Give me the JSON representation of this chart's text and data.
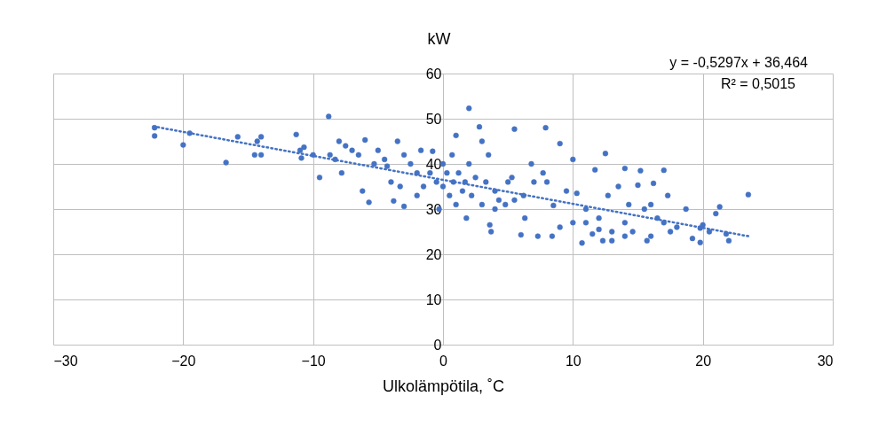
{
  "chart_data": {
    "type": "scatter",
    "xlabel": "Ulkolämpötila, ˚C",
    "ylabel": "kW",
    "xlim": [
      -30,
      30
    ],
    "xticks": [
      -30,
      -20,
      -10,
      0,
      10,
      20,
      30
    ],
    "ylim": [
      0,
      60
    ],
    "yticks": [
      0,
      10,
      20,
      30,
      40,
      50,
      60
    ],
    "grid": true,
    "marker": "circle",
    "annotations": [
      "y = -0,5297x + 36,464",
      "R² = 0,5015"
    ],
    "series": [
      {
        "color": "#4472c4",
        "x": [
          -22.2,
          -22.2,
          -20,
          -19.5,
          -16.7,
          -15.8,
          -14.5,
          -14.3,
          -14,
          -14,
          -11.3,
          -11,
          -10.9,
          -10.7,
          -10,
          -9.5,
          -8.8,
          -8.7,
          -8.3,
          -8,
          -7.8,
          -7.5,
          -7,
          -6.5,
          -6.2,
          -6,
          -5.7,
          -5.3,
          -5,
          -4.5,
          -4.3,
          -4,
          -3.8,
          -3.5,
          -3.3,
          -3,
          -3,
          -2.5,
          -2,
          -2,
          -1.7,
          -1.5,
          -1,
          -0.8,
          -0.5,
          -0.3,
          0,
          0,
          0.3,
          0.5,
          0.7,
          0.8,
          1,
          1,
          1.2,
          1.5,
          1.7,
          1.8,
          2,
          2,
          2.2,
          2.5,
          2.8,
          3,
          3,
          3.3,
          3.5,
          3.6,
          3.7,
          4,
          4,
          4.3,
          4.8,
          5,
          5.3,
          5.5,
          5.5,
          6,
          6.2,
          6.3,
          6.8,
          7,
          7.3,
          7.7,
          7.9,
          8,
          8.4,
          8.5,
          9,
          9,
          9.5,
          10,
          10,
          10.3,
          10.7,
          11,
          11.5,
          11.7,
          12,
          12.3,
          12.5,
          12.7,
          13,
          13.5,
          14,
          14,
          14.3,
          14.6,
          15,
          15.2,
          15.5,
          15.7,
          16,
          16.2,
          16.5,
          17,
          17.3,
          17.5,
          18.7,
          19.2,
          19.8,
          19.8,
          20,
          21,
          21.3,
          21.8,
          22,
          23.5,
          18,
          12,
          13,
          11,
          14,
          16,
          17,
          20.5
        ],
        "values": [
          48,
          46.2,
          44.2,
          46.8,
          40.3,
          46,
          42,
          45,
          42,
          46,
          46.5,
          43,
          41.3,
          43.7,
          42,
          37,
          50.5,
          42,
          41,
          45,
          38,
          44,
          43,
          42,
          34,
          45.3,
          31.5,
          40,
          43,
          41,
          39.5,
          36,
          31.8,
          45,
          35,
          42,
          30.6,
          40,
          38,
          33,
          43,
          35,
          38,
          42.8,
          36,
          30,
          40,
          35,
          38,
          33,
          42,
          36,
          46.3,
          31,
          38,
          34,
          36,
          28,
          52.3,
          40,
          33,
          37,
          48.2,
          45,
          31,
          36,
          42,
          26.5,
          25,
          34,
          30,
          32,
          31,
          36,
          37,
          47.7,
          32,
          24.3,
          33,
          28,
          40,
          36,
          24,
          38,
          48,
          36,
          24,
          30.8,
          44.5,
          26,
          34,
          41,
          27,
          33.5,
          22.5,
          27,
          24.5,
          38.7,
          28,
          23,
          42.3,
          33,
          25,
          35,
          39,
          24,
          31,
          25,
          35.3,
          38.5,
          30,
          23,
          31,
          35.7,
          28,
          38.6,
          33,
          25,
          30,
          23.5,
          22.6,
          25.8,
          26.5,
          29,
          30.5,
          24.5,
          23,
          33.2,
          26,
          25.5,
          23,
          30,
          27,
          24,
          27,
          25
        ]
      },
      {
        "color": "#4472c4",
        "type": "line",
        "line_style": "dotted",
        "marker": "none",
        "x": [
          -22.3,
          23.5
        ],
        "values": [
          48.3,
          24.0
        ]
      }
    ]
  }
}
